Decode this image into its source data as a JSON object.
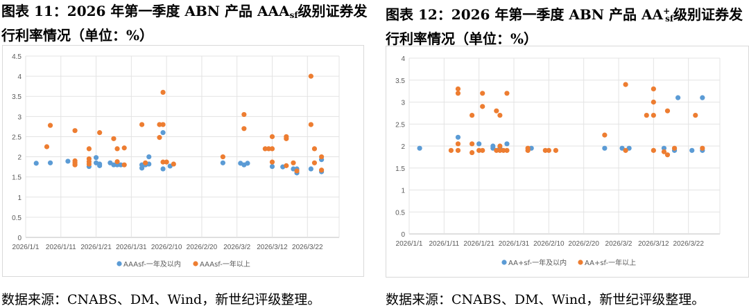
{
  "charts_text": [
    {
      "title_line1_prefix": "图表 11：2026 年第一季度 ABN 产品 ",
      "rating": "AAA",
      "rating_sup": "",
      "rating_sub": "sf",
      "title_line1_suffix": "级别证券发",
      "title_line2": "行利率情况（单位：%）",
      "source": "数据来源：CNABS、DM、Wind，新世纪评级整理。"
    },
    {
      "title_line1_prefix": "图表 12：2026 年第一季度 ABN 产品 ",
      "rating": "AA",
      "rating_sup": "+",
      "rating_sub": "sf",
      "title_line1_suffix": "级别证券发",
      "title_line2": "行利率情况（单位：%）",
      "source": "数据来源：CNABS、DM、Wind，新世纪评级整理。"
    }
  ],
  "chart_data": [
    {
      "type": "scatter",
      "title": "",
      "xlabel": "",
      "ylabel": "",
      "ylim": [
        0,
        4.5
      ],
      "ystep": 0.5,
      "yticks": [
        "0",
        "0.5",
        "1",
        "1.5",
        "2",
        "2.5",
        "3",
        "3.5",
        "4",
        "4.5"
      ],
      "xlim": [
        "2026/1/1",
        "2026/3/31"
      ],
      "xticks": [
        "2026/1/1",
        "2026/1/11",
        "2026/1/21",
        "2026/1/31",
        "2026/2/10",
        "2026/2/20",
        "2026/3/2",
        "2026/3/12",
        "2026/3/22"
      ],
      "grid": true,
      "legend": "bottom",
      "series": [
        {
          "name": "AAAsf-一年及以内",
          "color": "#5b9bd5",
          "points": [
            [
              "2026/1/4",
              1.84
            ],
            [
              "2026/1/8",
              1.85
            ],
            [
              "2026/1/13",
              1.89
            ],
            [
              "2026/1/19",
              1.76
            ],
            [
              "2026/1/21",
              1.98
            ],
            [
              "2026/1/21",
              1.85
            ],
            [
              "2026/1/22",
              1.82
            ],
            [
              "2026/1/22",
              1.78
            ],
            [
              "2026/1/25",
              1.85
            ],
            [
              "2026/1/26",
              1.8
            ],
            [
              "2026/1/27",
              1.8
            ],
            [
              "2026/1/28",
              1.8
            ],
            [
              "2026/2/3",
              1.72
            ],
            [
              "2026/2/3",
              1.8
            ],
            [
              "2026/2/4",
              1.8
            ],
            [
              "2026/2/5",
              2.0
            ],
            [
              "2026/2/5",
              1.82
            ],
            [
              "2026/2/9",
              2.6
            ],
            [
              "2026/2/9",
              1.7
            ],
            [
              "2026/2/11",
              1.77
            ],
            [
              "2026/2/26",
              1.85
            ],
            [
              "2026/3/3",
              1.84
            ],
            [
              "2026/3/4",
              1.8
            ],
            [
              "2026/3/5",
              1.84
            ],
            [
              "2026/3/12",
              1.76
            ],
            [
              "2026/3/15",
              1.75
            ],
            [
              "2026/3/18",
              1.7
            ],
            [
              "2026/3/19",
              1.7
            ],
            [
              "2026/3/19",
              1.6
            ],
            [
              "2026/3/23",
              1.7
            ],
            [
              "2026/3/26",
              1.93
            ],
            [
              "2026/3/26",
              1.63
            ]
          ]
        },
        {
          "name": "AAAsf-一年以上",
          "color": "#ed7d31",
          "points": [
            [
              "2026/1/7",
              2.25
            ],
            [
              "2026/1/8",
              2.78
            ],
            [
              "2026/1/15",
              2.65
            ],
            [
              "2026/1/15",
              1.9
            ],
            [
              "2026/1/15",
              1.85
            ],
            [
              "2026/1/15",
              1.8
            ],
            [
              "2026/1/19",
              2.2
            ],
            [
              "2026/1/19",
              1.95
            ],
            [
              "2026/1/19",
              1.88
            ],
            [
              "2026/1/19",
              1.82
            ],
            [
              "2026/1/22",
              2.6
            ],
            [
              "2026/1/26",
              2.45
            ],
            [
              "2026/1/27",
              2.2
            ],
            [
              "2026/1/27",
              1.88
            ],
            [
              "2026/1/29",
              2.22
            ],
            [
              "2026/1/29",
              1.8
            ],
            [
              "2026/2/3",
              2.8
            ],
            [
              "2026/2/4",
              1.85
            ],
            [
              "2026/2/8",
              2.48
            ],
            [
              "2026/2/8",
              2.8
            ],
            [
              "2026/2/9",
              2.8
            ],
            [
              "2026/2/9",
              3.6
            ],
            [
              "2026/2/9",
              1.87
            ],
            [
              "2026/2/10",
              1.87
            ],
            [
              "2026/2/12",
              1.82
            ],
            [
              "2026/2/26",
              2.0
            ],
            [
              "2026/3/4",
              3.05
            ],
            [
              "2026/3/4",
              2.7
            ],
            [
              "2026/3/10",
              2.2
            ],
            [
              "2026/3/11",
              2.2
            ],
            [
              "2026/3/12",
              2.2
            ],
            [
              "2026/3/12",
              2.5
            ],
            [
              "2026/3/12",
              1.87
            ],
            [
              "2026/3/16",
              2.5
            ],
            [
              "2026/3/16",
              2.45
            ],
            [
              "2026/3/16",
              1.78
            ],
            [
              "2026/3/18",
              1.85
            ],
            [
              "2026/3/19",
              1.65
            ],
            [
              "2026/3/23",
              4.0
            ],
            [
              "2026/3/23",
              2.8
            ],
            [
              "2026/3/24",
              2.2
            ],
            [
              "2026/3/24",
              1.85
            ],
            [
              "2026/3/26",
              2.0
            ],
            [
              "2026/3/26",
              1.67
            ]
          ]
        }
      ]
    },
    {
      "type": "scatter",
      "title": "",
      "xlabel": "",
      "ylabel": "",
      "ylim": [
        0,
        4
      ],
      "ystep": 0.5,
      "yticks": [
        "0",
        "0.5",
        "1",
        "1.5",
        "2",
        "2.5",
        "3",
        "3.5",
        "4"
      ],
      "xlim": [
        "2026/1/1",
        "2026/3/31"
      ],
      "xticks": [
        "2026/1/1",
        "2026/1/11",
        "2026/1/21",
        "2026/1/31",
        "2026/2/10",
        "2026/2/20",
        "2026/3/2",
        "2026/3/12",
        "2026/3/22"
      ],
      "grid": true,
      "legend": "bottom",
      "series": [
        {
          "name": "AA+sf-一年及以内",
          "color": "#5b9bd5",
          "points": [
            [
              "2026/1/4",
              1.95
            ],
            [
              "2026/1/15",
              2.2
            ],
            [
              "2026/1/21",
              2.05
            ],
            [
              "2026/1/25",
              2.0
            ],
            [
              "2026/1/25",
              1.95
            ],
            [
              "2026/1/27",
              1.95
            ],
            [
              "2026/1/29",
              2.05
            ],
            [
              "2026/2/5",
              1.95
            ],
            [
              "2026/2/26",
              1.95
            ],
            [
              "2026/3/3",
              1.95
            ],
            [
              "2026/3/5",
              1.95
            ],
            [
              "2026/3/15",
              1.95
            ],
            [
              "2026/3/18",
              1.9
            ],
            [
              "2026/3/19",
              3.1
            ],
            [
              "2026/3/23",
              1.9
            ],
            [
              "2026/3/26",
              3.1
            ],
            [
              "2026/3/26",
              1.9
            ]
          ]
        },
        {
          "name": "AA+sf-一年以上",
          "color": "#ed7d31",
          "points": [
            [
              "2026/1/13",
              1.9
            ],
            [
              "2026/1/15",
              3.3
            ],
            [
              "2026/1/15",
              3.2
            ],
            [
              "2026/1/15",
              2.05
            ],
            [
              "2026/1/15",
              1.9
            ],
            [
              "2026/1/19",
              2.7
            ],
            [
              "2026/1/19",
              2.05
            ],
            [
              "2026/1/19",
              1.85
            ],
            [
              "2026/1/21",
              1.9
            ],
            [
              "2026/1/22",
              3.2
            ],
            [
              "2026/1/22",
              2.9
            ],
            [
              "2026/1/22",
              1.9
            ],
            [
              "2026/1/26",
              2.8
            ],
            [
              "2026/1/26",
              1.9
            ],
            [
              "2026/1/27",
              2.7
            ],
            [
              "2026/1/27",
              2.0
            ],
            [
              "2026/1/27",
              1.9
            ],
            [
              "2026/1/28",
              1.9
            ],
            [
              "2026/1/29",
              3.2
            ],
            [
              "2026/1/29",
              1.9
            ],
            [
              "2026/2/4",
              1.9
            ],
            [
              "2026/2/4",
              1.95
            ],
            [
              "2026/2/9",
              1.9
            ],
            [
              "2026/2/10",
              1.9
            ],
            [
              "2026/2/12",
              1.9
            ],
            [
              "2026/2/26",
              2.25
            ],
            [
              "2026/3/4",
              3.4
            ],
            [
              "2026/3/4",
              1.9
            ],
            [
              "2026/3/10",
              2.7
            ],
            [
              "2026/3/12",
              3.3
            ],
            [
              "2026/3/12",
              3.0
            ],
            [
              "2026/3/12",
              2.7
            ],
            [
              "2026/3/12",
              1.9
            ],
            [
              "2026/3/15",
              1.87
            ],
            [
              "2026/3/16",
              2.8
            ],
            [
              "2026/3/16",
              1.8
            ],
            [
              "2026/3/18",
              1.95
            ],
            [
              "2026/3/24",
              2.7
            ],
            [
              "2026/3/26",
              1.95
            ]
          ]
        }
      ]
    }
  ]
}
